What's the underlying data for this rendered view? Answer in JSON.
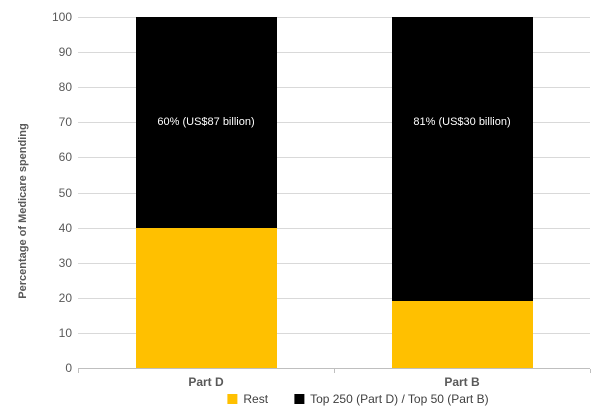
{
  "chart_data": {
    "type": "bar",
    "stacked": true,
    "title": "",
    "categories": [
      "Part D",
      "Part B"
    ],
    "series": [
      {
        "name": "Rest",
        "color": "#FFC000",
        "values": [
          40,
          19
        ]
      },
      {
        "name": "Top 250 (Part D) / Top 50 (Part B)",
        "color": "#000000",
        "values": [
          60,
          81
        ]
      }
    ],
    "data_labels": [
      {
        "text": "60% (US$87 billion)",
        "category": "Part D",
        "y_value": 70
      },
      {
        "text": "81% (US$30 billion)",
        "category": "Part B",
        "y_value": 70
      }
    ],
    "xlabel": "",
    "ylabel": "Percentage of Medicare spending",
    "ylim": [
      0,
      100
    ],
    "ytick_step": 10,
    "grid": true,
    "legend_position": "bottom",
    "colors": {
      "gridline": "#D9D9D9",
      "axis_line": "#BFBFBF",
      "tick_text": "#595959",
      "data_label_text": "#FFFFFF",
      "background": "#FFFFFF"
    }
  }
}
